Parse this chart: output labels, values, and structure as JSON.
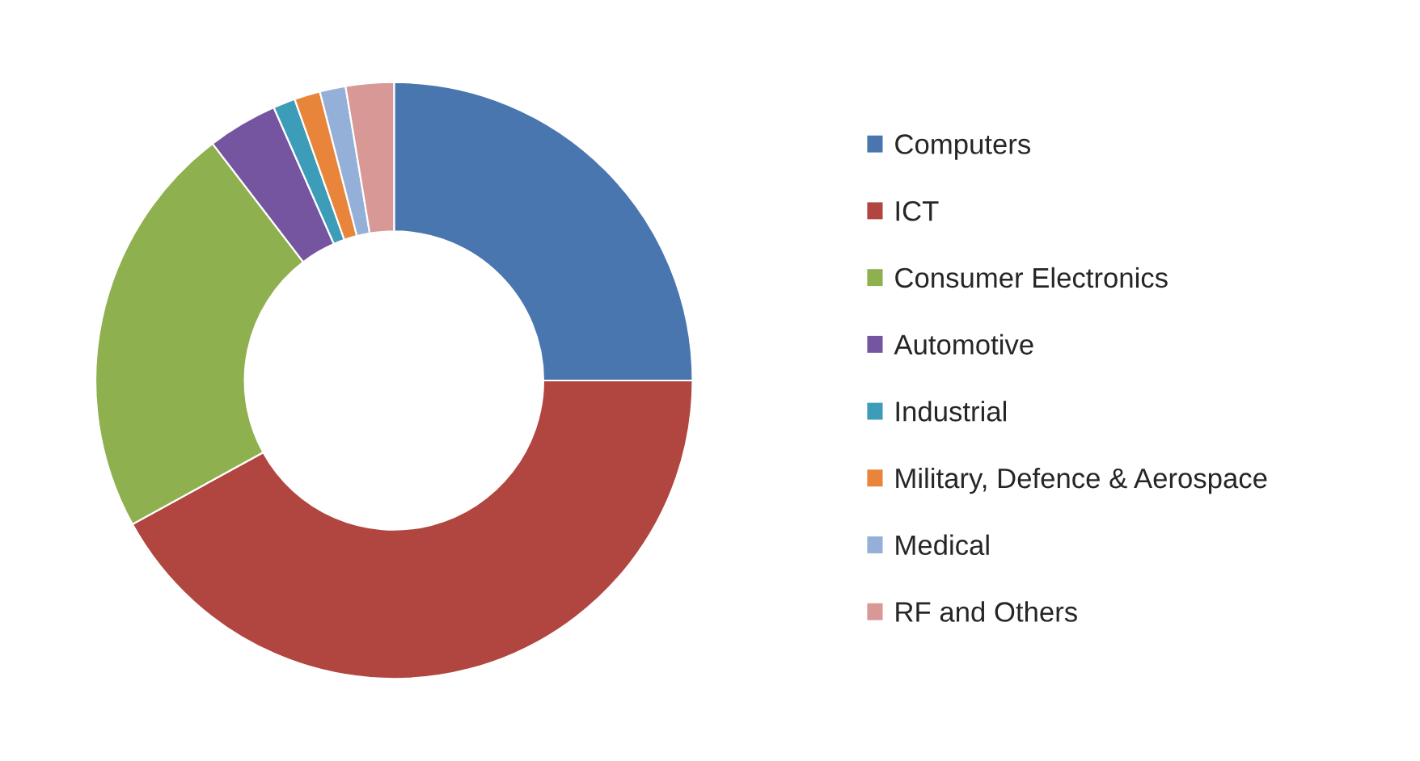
{
  "chart_data": {
    "type": "donut",
    "categories": [
      "Computers",
      "ICT",
      "Consumer Electronics",
      "Automotive",
      "Industrial",
      "Military, Defence & Aerospace",
      "Medical",
      "RF and Others"
    ],
    "values": [
      25.0,
      42.0,
      22.6,
      3.8,
      1.2,
      1.4,
      1.4,
      2.6
    ],
    "colors": [
      "#4a76b0",
      "#b0463f",
      "#8fb04e",
      "#7554a0",
      "#3d9cb8",
      "#e8853a",
      "#94b0d8",
      "#d89896"
    ],
    "legend": "right"
  }
}
